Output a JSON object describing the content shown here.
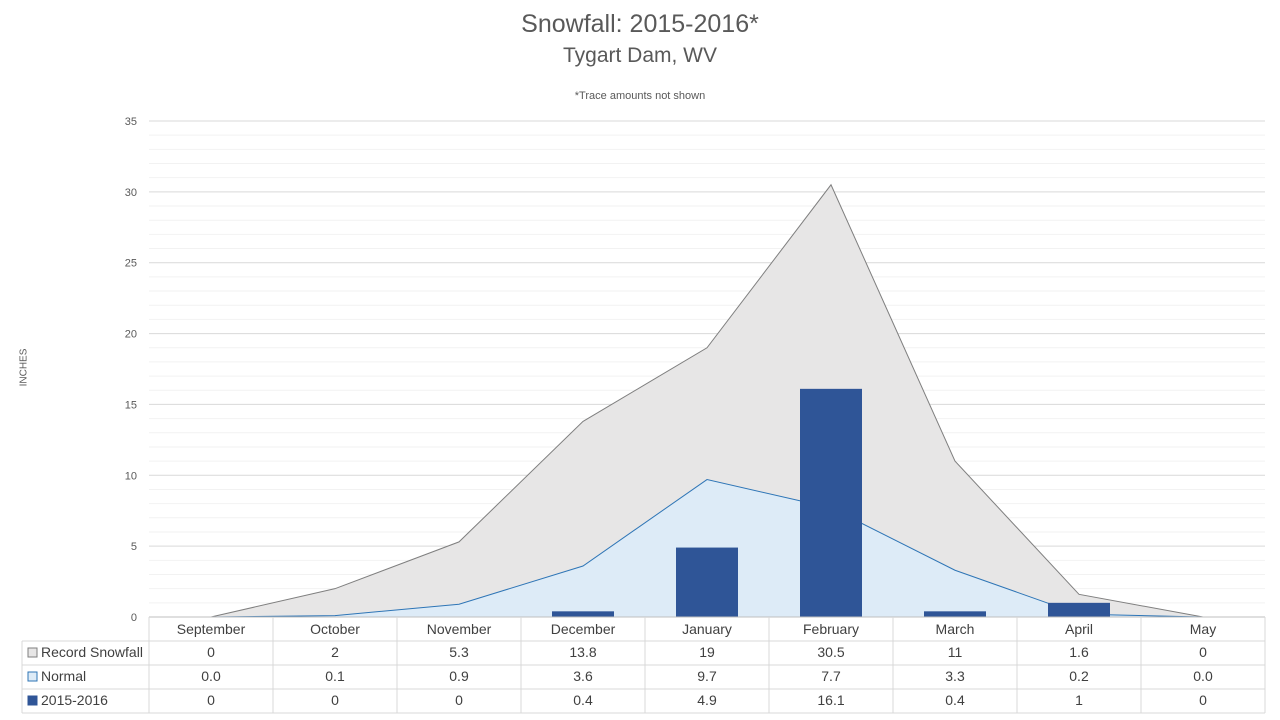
{
  "chart_data": {
    "type": "bar",
    "title": "Snowfall: 2015-2016*",
    "subtitle": "Tygart Dam, WV",
    "note": "*Trace amounts not shown",
    "ylabel": "INCHES",
    "xlabel": "",
    "ylim": [
      0,
      35
    ],
    "y_ticks": [
      0,
      5,
      10,
      15,
      20,
      25,
      30,
      35
    ],
    "grid": true,
    "legend": "data-table",
    "categories": [
      "September",
      "October",
      "November",
      "December",
      "January",
      "February",
      "March",
      "April",
      "May"
    ],
    "series": [
      {
        "name": "Record Snowfall",
        "type": "area",
        "color": "#e7e6e6",
        "line_color": "#7f7f7f",
        "values": [
          0,
          2,
          5.3,
          13.8,
          19,
          30.5,
          11,
          1.6,
          0
        ],
        "labels": [
          "0",
          "2",
          "5.3",
          "13.8",
          "19",
          "30.5",
          "11",
          "1.6",
          "0"
        ]
      },
      {
        "name": "Normal",
        "type": "area",
        "color": "#ddebf7",
        "line_color": "#2e75b6",
        "values": [
          0.0,
          0.1,
          0.9,
          3.6,
          9.7,
          7.7,
          3.3,
          0.2,
          0.0
        ],
        "labels": [
          "0.0",
          "0.1",
          "0.9",
          "3.6",
          "9.7",
          "7.7",
          "3.3",
          "0.2",
          "0.0"
        ]
      },
      {
        "name": "2015-2016",
        "type": "bar",
        "color": "#2f5597",
        "values": [
          0,
          0,
          0,
          0.4,
          4.9,
          16.1,
          0.4,
          1,
          0
        ],
        "labels": [
          "0",
          "0",
          "0",
          "0.4",
          "4.9",
          "16.1",
          "0.4",
          "1",
          "0"
        ]
      }
    ]
  }
}
